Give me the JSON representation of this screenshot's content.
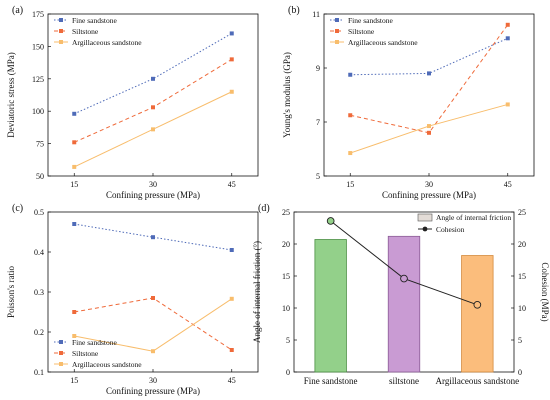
{
  "chart_data": [
    {
      "panel": "(a)",
      "type": "line",
      "x": [
        15,
        30,
        45
      ],
      "xticks": [
        15,
        30,
        45
      ],
      "xlim": [
        10,
        50
      ],
      "xlabel": "Confining pressure (MPa)",
      "ylabel": "Deviatoric stress (MPa)",
      "ylim": [
        50,
        175
      ],
      "yticks": [
        50,
        75,
        100,
        125,
        150,
        175
      ],
      "legend": "top-left",
      "series": [
        {
          "name": "Fine sandstone",
          "values": [
            98,
            125,
            160
          ],
          "color": "#4f6bb8",
          "marker": "square",
          "dash": "dot"
        },
        {
          "name": "Siltstone",
          "values": [
            76,
            103,
            140
          ],
          "color": "#ef6a3a",
          "marker": "square",
          "dash": "dash"
        },
        {
          "name": "Argillaceous sandstone",
          "values": [
            57,
            86,
            115
          ],
          "color": "#f8bd6c",
          "marker": "square",
          "dash": "solid"
        }
      ]
    },
    {
      "panel": "(b)",
      "type": "line",
      "x": [
        15,
        30,
        45
      ],
      "xticks": [
        15,
        30,
        45
      ],
      "xlim": [
        10,
        50
      ],
      "xlabel": "Confining pressure (MPa)",
      "ylabel": "Young's modulus (GPa)",
      "ylim": [
        5,
        11
      ],
      "yticks": [
        5,
        7,
        9,
        11
      ],
      "legend": "top-left",
      "series": [
        {
          "name": "Fine sandstone",
          "values": [
            8.75,
            8.8,
            10.1
          ],
          "color": "#4f6bb8",
          "marker": "square",
          "dash": "dot"
        },
        {
          "name": "Siltstone",
          "values": [
            7.25,
            6.6,
            10.6
          ],
          "color": "#ef6a3a",
          "marker": "square",
          "dash": "dash"
        },
        {
          "name": "Argillaceous sandstone",
          "values": [
            5.85,
            6.85,
            7.65
          ],
          "color": "#f8bd6c",
          "marker": "square",
          "dash": "solid"
        }
      ]
    },
    {
      "panel": "(c)",
      "type": "line",
      "x": [
        15,
        30,
        45
      ],
      "xticks": [
        15,
        30,
        45
      ],
      "xlim": [
        10,
        50
      ],
      "xlabel": "Confining pressure (MPa)",
      "ylabel": "Poisson's ratio",
      "ylim": [
        0.1,
        0.5
      ],
      "yticks": [
        0.1,
        0.2,
        0.3,
        0.4,
        0.5
      ],
      "legend": "bottom-left",
      "series": [
        {
          "name": "Fine sandstone",
          "values": [
            0.47,
            0.437,
            0.405
          ],
          "color": "#4f6bb8",
          "marker": "square",
          "dash": "dot"
        },
        {
          "name": "Siltstone",
          "values": [
            0.25,
            0.285,
            0.155
          ],
          "color": "#ef6a3a",
          "marker": "square",
          "dash": "dash"
        },
        {
          "name": "Argillaceous sandstone",
          "values": [
            0.19,
            0.152,
            0.283
          ],
          "color": "#f8bd6c",
          "marker": "square",
          "dash": "solid"
        }
      ]
    },
    {
      "panel": "(d)",
      "type": "bar",
      "categories": [
        "Fine sandstone",
        "siltstone",
        "Argillaceous sandstone"
      ],
      "xlabel": "",
      "ylabel": "Angle of internal friction (°)",
      "ylim": [
        0,
        25
      ],
      "yticks": [
        0,
        5,
        10,
        15,
        20,
        25
      ],
      "y2label": "Cohesion (MPa)",
      "y2lim": [
        0,
        25
      ],
      "y2ticks": [
        0,
        5,
        10,
        15,
        20,
        25
      ],
      "legend": "top-right",
      "bar_series": {
        "name": "Angle of internal friction",
        "values": [
          20.7,
          21.2,
          18.2
        ]
      },
      "line_series": {
        "name": "Cohesion",
        "values": [
          23.6,
          14.6,
          10.5
        ],
        "color": "#222222"
      },
      "bar_colors": [
        {
          "fill": "#93d08a",
          "stroke": "#4a8f43"
        },
        {
          "fill": "#c99bd3",
          "stroke": "#8a5c96"
        },
        {
          "fill": "#fbbd7c",
          "stroke": "#d48a3d"
        }
      ]
    }
  ]
}
